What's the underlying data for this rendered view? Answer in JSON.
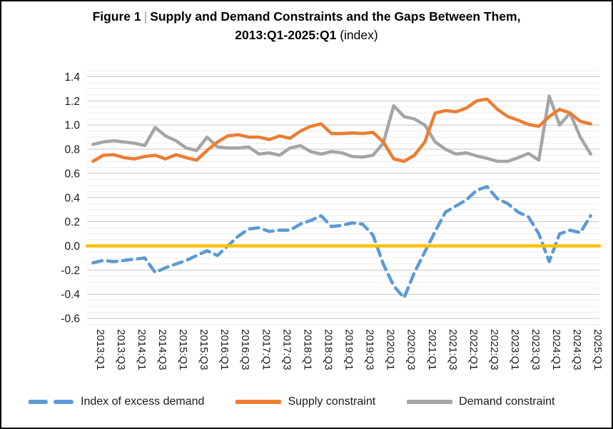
{
  "title": {
    "prefix": "Figure 1",
    "separator": "|",
    "main": "Supply and Demand Constraints and the Gaps Between Them,",
    "range": "2013:Q1-2025:Q1",
    "suffix": "(index)"
  },
  "legend": {
    "items": [
      {
        "label": "Index of excess demand",
        "color": "#5B9BD5",
        "style": "dashed"
      },
      {
        "label": "Supply constraint",
        "color": "#ED7D31",
        "style": "solid"
      },
      {
        "label": "Demand constraint",
        "color": "#A5A5A5",
        "style": "solid"
      }
    ]
  },
  "chart_data": {
    "type": "line",
    "title": "Figure 1 | Supply and Demand Constraints and the Gaps Between Them, 2013:Q1-2025:Q1 (index)",
    "x_tick_labels": [
      "2013:Q1",
      "2013:Q3",
      "2014:Q1",
      "2014:Q3",
      "2015:Q1",
      "2015:Q3",
      "2016:Q1",
      "2016:Q3",
      "2017:Q1",
      "2017:Q3",
      "2018:Q1",
      "2018:Q3",
      "2019:Q1",
      "2019:Q3",
      "2020:Q1",
      "2020:Q3",
      "2021:Q1",
      "2021:Q3",
      "2022:Q1",
      "2022:Q3",
      "2023:Q1",
      "2023:Q3",
      "2024:Q1",
      "2024:Q3",
      "2025:Q1"
    ],
    "x_tick_every_n_quarters": 2,
    "n_quarters": 49,
    "ylim": [
      -0.6,
      1.4
    ],
    "y_major_step": 0.2,
    "y_minor_step": 0.05,
    "y_tick_labels": [
      "1.4",
      "1.2",
      "1.0",
      "0.8",
      "0.6",
      "0.4",
      "0.2",
      "0.0",
      "-0.2",
      "-0.4",
      "-0.6"
    ],
    "grid": true,
    "legend_position": "bottom",
    "series": [
      {
        "name": "Demand constraint",
        "color": "#A5A5A5",
        "style": "solid",
        "values": [
          0.84,
          0.86,
          0.87,
          0.86,
          0.85,
          0.83,
          0.98,
          0.91,
          0.87,
          0.81,
          0.79,
          0.9,
          0.82,
          0.81,
          0.81,
          0.82,
          0.76,
          0.77,
          0.75,
          0.81,
          0.83,
          0.78,
          0.76,
          0.78,
          0.77,
          0.74,
          0.735,
          0.75,
          0.85,
          1.16,
          1.07,
          1.05,
          1.0,
          0.86,
          0.8,
          0.76,
          0.77,
          0.745,
          0.725,
          0.7,
          0.7,
          0.73,
          0.765,
          0.71,
          1.24,
          1.0,
          1.1,
          0.9,
          0.76
        ]
      },
      {
        "name": "Supply constraint",
        "color": "#ED7D31",
        "style": "solid",
        "values": [
          0.7,
          0.75,
          0.755,
          0.73,
          0.72,
          0.74,
          0.75,
          0.72,
          0.755,
          0.73,
          0.71,
          0.79,
          0.86,
          0.91,
          0.92,
          0.9,
          0.9,
          0.88,
          0.91,
          0.89,
          0.95,
          0.99,
          1.01,
          0.93,
          0.93,
          0.935,
          0.93,
          0.94,
          0.86,
          0.72,
          0.7,
          0.75,
          0.86,
          1.1,
          1.12,
          1.11,
          1.14,
          1.2,
          1.215,
          1.13,
          1.07,
          1.04,
          1.005,
          0.99,
          1.07,
          1.13,
          1.1,
          1.03,
          1.01
        ]
      },
      {
        "name": "Index of excess demand",
        "color": "#5B9BD5",
        "style": "dashed",
        "values": [
          -0.14,
          -0.12,
          -0.13,
          -0.12,
          -0.11,
          -0.1,
          -0.22,
          -0.18,
          -0.15,
          -0.12,
          -0.08,
          -0.04,
          -0.08,
          0.0,
          0.08,
          0.14,
          0.15,
          0.12,
          0.13,
          0.13,
          0.18,
          0.21,
          0.25,
          0.16,
          0.17,
          0.19,
          0.18,
          0.09,
          -0.15,
          -0.33,
          -0.43,
          -0.22,
          -0.05,
          0.12,
          0.28,
          0.33,
          0.38,
          0.46,
          0.49,
          0.39,
          0.35,
          0.28,
          0.24,
          0.1,
          -0.13,
          0.1,
          0.13,
          0.11,
          0.25
        ]
      },
      {
        "name": "zero-line",
        "color": "#FFC000",
        "style": "solid",
        "constant": 0.0
      }
    ]
  },
  "colors": {
    "major_grid": "#c6c6c6",
    "minor_grid": "#ebebeb",
    "axis_text": "#1a1a1a",
    "border": "#000000"
  }
}
